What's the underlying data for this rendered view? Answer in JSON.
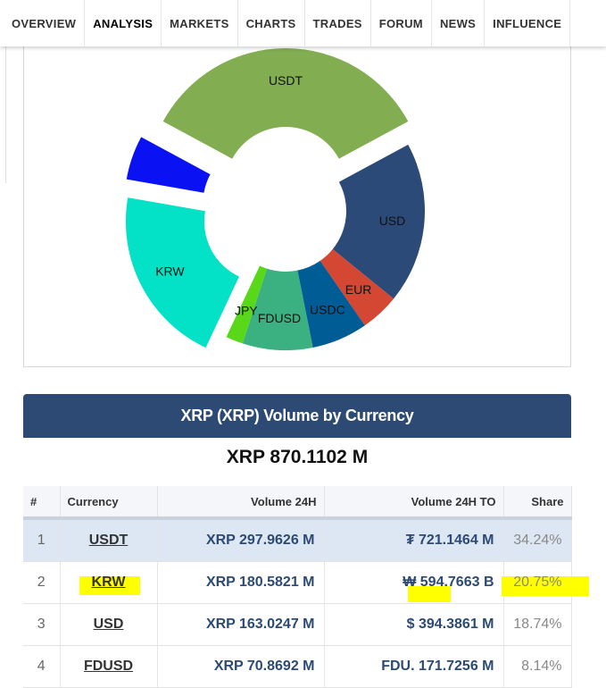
{
  "nav": {
    "items": [
      "OVERVIEW",
      "ANALYSIS",
      "MARKETS",
      "CHARTS",
      "TRADES",
      "FORUM",
      "NEWS",
      "INFLUENCE"
    ],
    "active": "ANALYSIS"
  },
  "chart_data": {
    "type": "pie",
    "variant": "donut",
    "labels": [
      "USDT",
      "USD",
      "EUR",
      "USDC",
      "FDUSD",
      "JPY",
      "KRW",
      ""
    ],
    "values": [
      34.24,
      18.74,
      4.5,
      6.5,
      8.14,
      2.0,
      20.75,
      5.13
    ],
    "colors": [
      "#82ad51",
      "#2c4a78",
      "#d34733",
      "#005c94",
      "#3bb081",
      "#58d818",
      "#03e2c6",
      "#0a12f3"
    ],
    "exploded": [
      "USDT",
      "KRW",
      ""
    ]
  },
  "panel": {
    "title": "XRP (XRP) Volume by Currency",
    "total": "XRP 870.1102 M"
  },
  "table": {
    "headers": [
      "#",
      "Currency",
      "Volume 24H",
      "Volume 24H TO",
      "Share"
    ],
    "rows": [
      {
        "num": "1",
        "currency": "USDT",
        "volume": "XRP 297.9626 M",
        "volume_to": "₮ 721.1464 M",
        "share": "34.24%"
      },
      {
        "num": "2",
        "currency": "KRW",
        "volume": "XRP 180.5821 M",
        "volume_to": "₩ 594.7663 B",
        "share": "20.75%"
      },
      {
        "num": "3",
        "currency": "USD",
        "volume": "XRP 163.0247 M",
        "volume_to": "$ 394.3861 M",
        "share": "18.74%"
      },
      {
        "num": "4",
        "currency": "FDUSD",
        "volume": "XRP 70.8692 M",
        "volume_to": "FDU. 171.7256 M",
        "share": "8.14%"
      }
    ]
  },
  "colors": {
    "header_bg": "#2c4a73",
    "highlight_row": "#dde7f3",
    "text_accent": "#2c4a73",
    "annotation": "#ffff00"
  }
}
